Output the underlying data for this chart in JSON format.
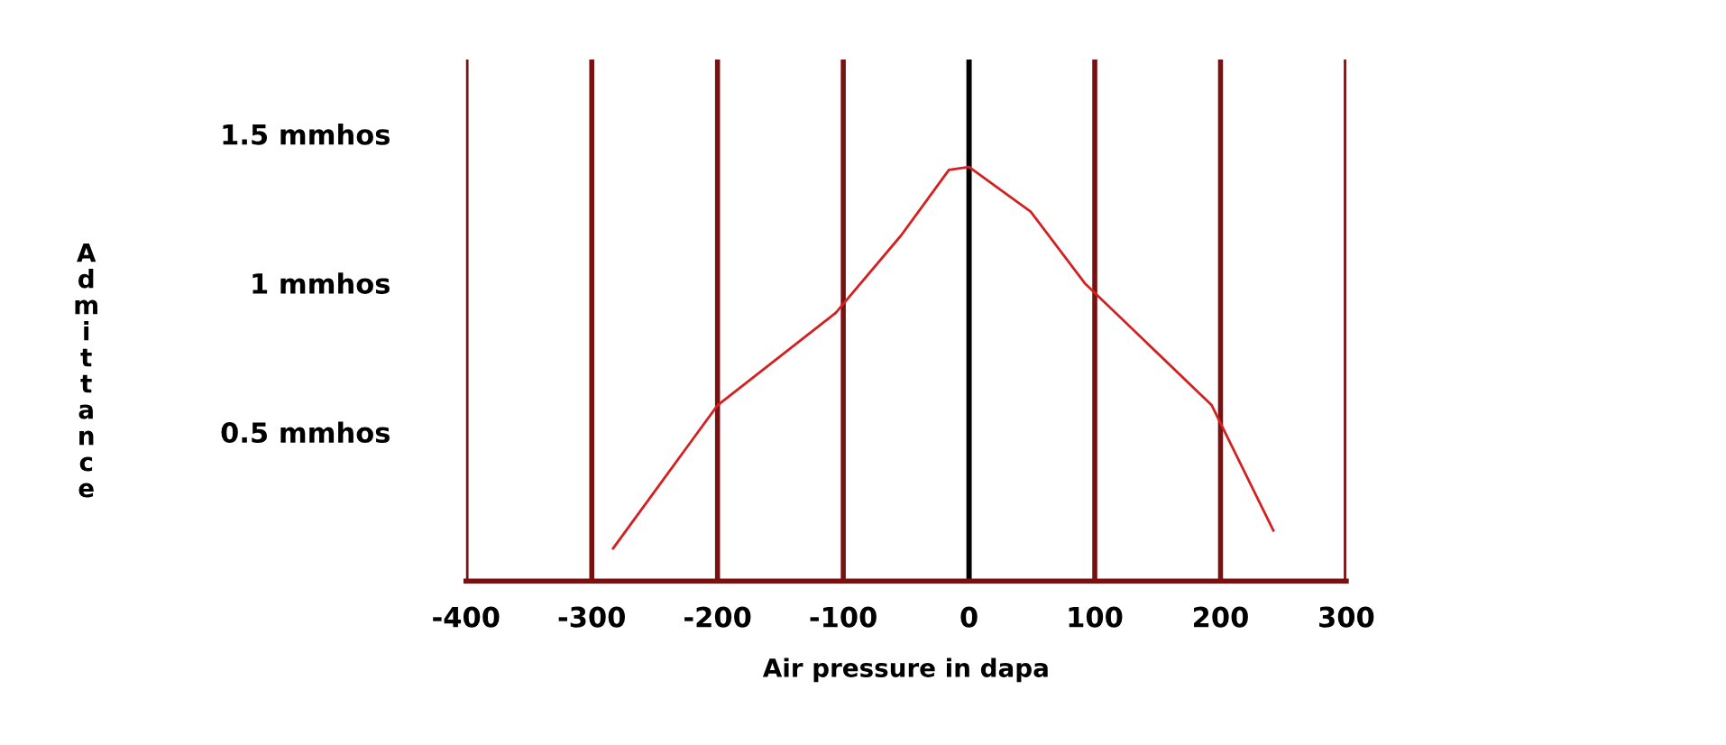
{
  "chart_data": {
    "type": "line",
    "xlabel": "Air pressure in dapa",
    "ylabel": "Admittance",
    "x": [
      -283,
      -200,
      -106,
      -54,
      -16,
      0,
      49,
      92,
      193,
      242
    ],
    "series": [
      {
        "color": "#d42020",
        "values": [
          0.11,
          0.59,
          0.9,
          1.16,
          1.38,
          1.39,
          1.24,
          1.0,
          0.59,
          0.17
        ]
      }
    ],
    "xlim": [
      -400,
      300
    ],
    "xticks": [
      -400,
      -300,
      -200,
      -100,
      0,
      100,
      200,
      300
    ],
    "ylim": [
      0,
      1.75
    ],
    "yticks": [
      {
        "value": 0.5,
        "label": "0.5 mmhos"
      },
      {
        "value": 1,
        "label": "1 mmhos"
      },
      {
        "value": 1.5,
        "label": "1.5 mmhos"
      }
    ],
    "grid": "x",
    "marker": "none",
    "line_style": "solid",
    "legend": false,
    "ref_lines": [
      {
        "axis": "x",
        "value": 0,
        "color": "#000000"
      }
    ]
  }
}
